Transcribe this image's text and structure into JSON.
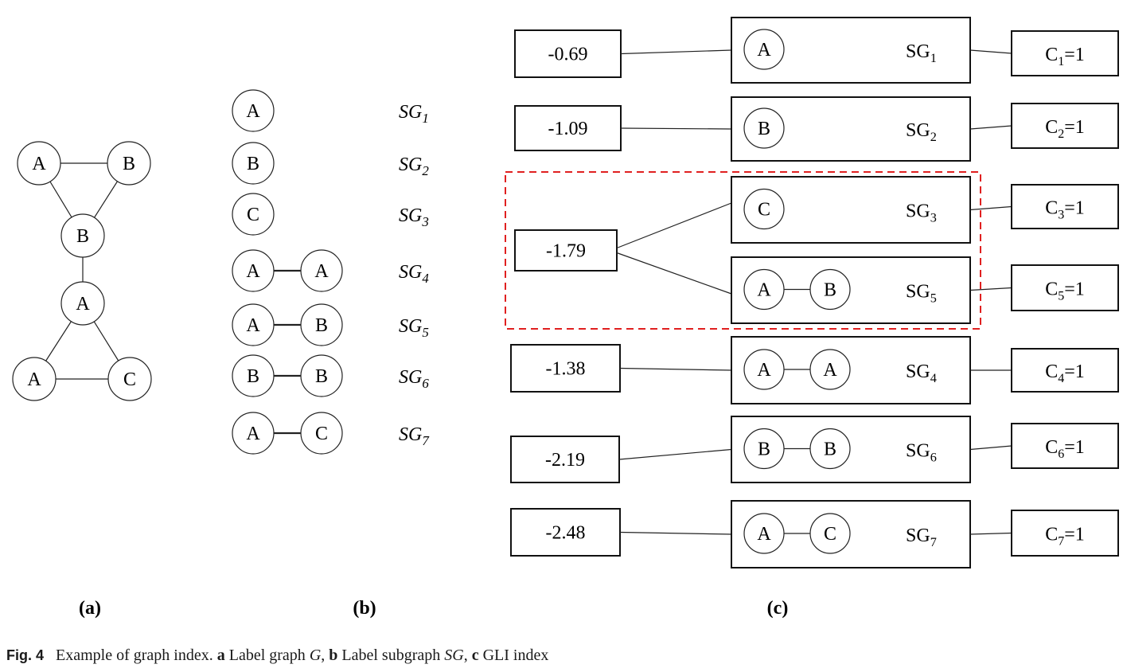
{
  "panel_a": {
    "nodes": [
      {
        "id": "a1",
        "label": "A"
      },
      {
        "id": "a2",
        "label": "B"
      },
      {
        "id": "a3",
        "label": "B"
      },
      {
        "id": "a4",
        "label": "A"
      },
      {
        "id": "a5",
        "label": "A"
      },
      {
        "id": "a6",
        "label": "C"
      }
    ],
    "edges": [
      [
        "a1",
        "a2"
      ],
      [
        "a1",
        "a3"
      ],
      [
        "a2",
        "a3"
      ],
      [
        "a3",
        "a4"
      ],
      [
        "a4",
        "a5"
      ],
      [
        "a4",
        "a6"
      ],
      [
        "a5",
        "a6"
      ]
    ]
  },
  "panel_b": {
    "rows": [
      {
        "nodes": [
          "A"
        ],
        "sub": "1"
      },
      {
        "nodes": [
          "B"
        ],
        "sub": "2"
      },
      {
        "nodes": [
          "C"
        ],
        "sub": "3"
      },
      {
        "nodes": [
          "A",
          "A"
        ],
        "sub": "4"
      },
      {
        "nodes": [
          "A",
          "B"
        ],
        "sub": "5"
      },
      {
        "nodes": [
          "B",
          "B"
        ],
        "sub": "6"
      },
      {
        "nodes": [
          "A",
          "C"
        ],
        "sub": "7"
      }
    ],
    "sg_prefix": "SG"
  },
  "panel_c": {
    "keys": [
      "-0.69",
      "-1.09",
      "-1.79",
      "-1.38",
      "-2.19",
      "-2.48"
    ],
    "subgraphs": [
      {
        "nodes": [
          "A"
        ],
        "sub": "1",
        "key": 0,
        "count": "1"
      },
      {
        "nodes": [
          "B"
        ],
        "sub": "2",
        "key": 1,
        "count": "1"
      },
      {
        "nodes": [
          "C"
        ],
        "sub": "3",
        "key": 2,
        "count": "1"
      },
      {
        "nodes": [
          "A",
          "B"
        ],
        "sub": "5",
        "key": 2,
        "count": "1"
      },
      {
        "nodes": [
          "A",
          "A"
        ],
        "sub": "4",
        "key": 3,
        "count": "1"
      },
      {
        "nodes": [
          "B",
          "B"
        ],
        "sub": "6",
        "key": 4,
        "count": "1"
      },
      {
        "nodes": [
          "A",
          "C"
        ],
        "sub": "7",
        "key": 5,
        "count": "1"
      }
    ],
    "sg_prefix": "SG",
    "count_prefix": "C",
    "highlight_color": "#e02020"
  },
  "panel_labels": {
    "a": "(a)",
    "b": "(b)",
    "c": "(c)"
  },
  "caption": {
    "label": "Fig. 4",
    "text": "Example of graph index.",
    "a": "a",
    "a_text": "Label graph",
    "a_var": "G",
    "b": "b",
    "b_text": "Label subgraph",
    "b_var": "SG",
    "c": "c",
    "c_text": "GLI index"
  }
}
